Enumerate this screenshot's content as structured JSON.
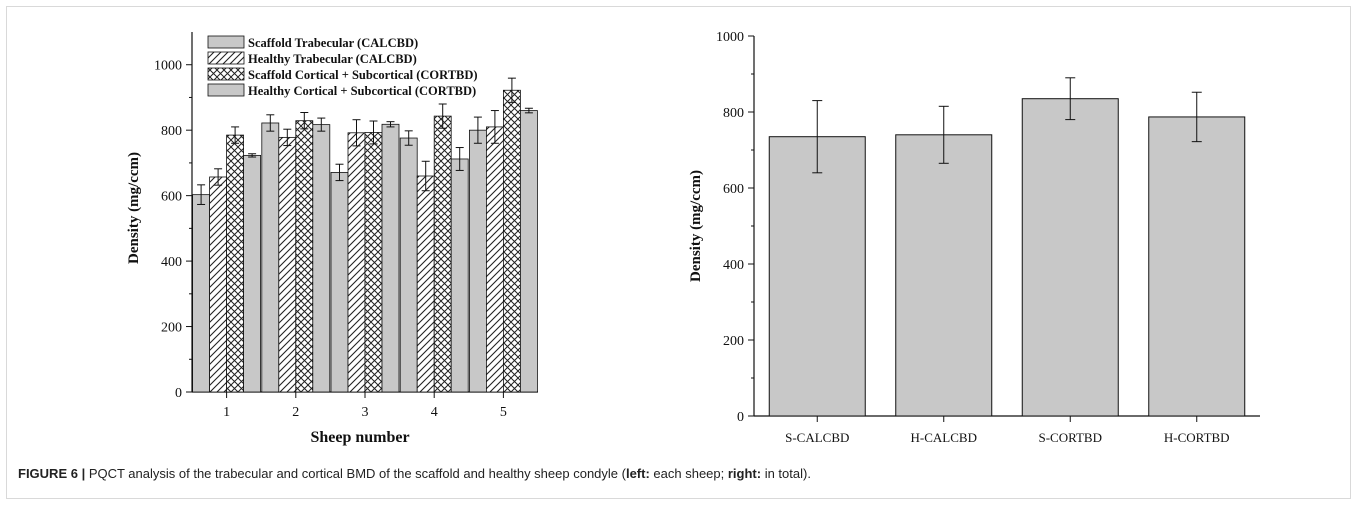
{
  "chart_data": [
    {
      "type": "bar",
      "xlabel": "Sheep number",
      "ylabel": "Density (mg/ccm)",
      "ylim": [
        0,
        1100
      ],
      "yticks": [
        0,
        200,
        400,
        600,
        800,
        1000
      ],
      "categories": [
        "1",
        "2",
        "3",
        "4",
        "5"
      ],
      "legend_position": "top-left",
      "series": [
        {
          "name": "Scaffold Trabecular (CALCBD)",
          "pattern": "solid",
          "values": [
            603,
            822,
            671,
            776,
            800
          ],
          "errors": [
            30,
            25,
            25,
            22,
            40
          ]
        },
        {
          "name": "Healthy Trabecular (CALCBD)",
          "pattern": "diagonal",
          "values": [
            657,
            778,
            792,
            660,
            810
          ],
          "errors": [
            25,
            25,
            40,
            45,
            50
          ]
        },
        {
          "name": "Scaffold Cortical + Subcortical (CORTBD)",
          "pattern": "crosshatch",
          "values": [
            785,
            829,
            793,
            843,
            922
          ],
          "errors": [
            25,
            25,
            35,
            37,
            37
          ]
        },
        {
          "name": "Healthy Cortical + Subcortical (CORTBD)",
          "pattern": "solid",
          "values": [
            723,
            817,
            818,
            712,
            860
          ],
          "errors": [
            5,
            20,
            8,
            35,
            7
          ]
        }
      ]
    },
    {
      "type": "bar",
      "xlabel": "",
      "ylabel": "Density (mg/ccm)",
      "ylim": [
        0,
        1000
      ],
      "yticks": [
        0,
        200,
        400,
        600,
        800,
        1000
      ],
      "categories": [
        "S-CALCBD",
        "H-CALCBD",
        "S-CORTBD",
        "H-CORTBD"
      ],
      "values": [
        735,
        740,
        835,
        787
      ],
      "errors": [
        95,
        75,
        55,
        65
      ]
    }
  ],
  "caption": {
    "label": "FIGURE 6 |",
    "text1": " PQCT analysis of the trabecular and cortical BMD of the scaffold and healthy sheep condyle (",
    "left_bold": "left:",
    "text2": " each sheep; ",
    "right_bold": "right:",
    "text3": " in total)."
  },
  "colors": {
    "bar_fill": "#c8c8c8",
    "outline": "#111111"
  }
}
